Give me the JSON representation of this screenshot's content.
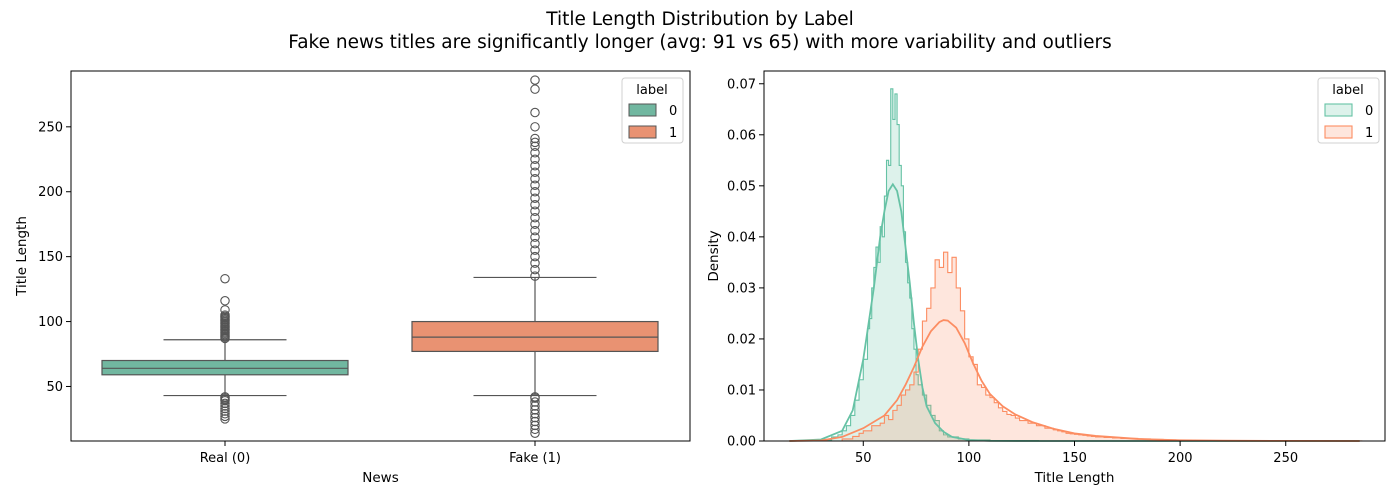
{
  "figure": {
    "title": "Title Length Distribution by Label",
    "subtitle": "Fake news titles are significantly longer (avg: 91 vs 65) with more variability and outliers"
  },
  "colors": {
    "label0": "#66c2a5",
    "label1": "#fc8d62",
    "label0_box": "#71b7a0",
    "label1_box": "#e99272",
    "box_line": "#555555"
  },
  "chart_data": [
    {
      "type": "box",
      "xlabel": "News",
      "ylabel": "Title Length",
      "categories": [
        "Real (0)",
        "Fake (1)"
      ],
      "ylim": [
        8,
        293
      ],
      "yticks": [
        50,
        100,
        150,
        200,
        250
      ],
      "grid": false,
      "legend": {
        "title": "label",
        "position": "top-right",
        "entries": [
          "0",
          "1"
        ]
      },
      "boxes": [
        {
          "category": "Real (0)",
          "label": "0",
          "whisker_low": 43,
          "q1": 59,
          "median": 64,
          "q3": 70,
          "whisker_high": 86,
          "outliers": [
            25,
            27,
            29,
            31,
            33,
            35,
            37,
            39,
            40,
            41,
            42,
            87,
            88,
            89,
            90,
            91,
            92,
            93,
            94,
            95,
            96,
            97,
            98,
            99,
            100,
            101,
            102,
            103,
            104,
            105,
            109,
            116,
            133
          ]
        },
        {
          "category": "Fake (1)",
          "label": "1",
          "whisker_low": 43,
          "q1": 77,
          "median": 88,
          "q3": 100,
          "whisker_high": 134,
          "outliers": [
            14,
            17,
            20,
            23,
            26,
            29,
            32,
            35,
            38,
            41,
            42,
            135,
            140,
            145,
            150,
            155,
            160,
            165,
            170,
            175,
            180,
            185,
            190,
            195,
            200,
            205,
            210,
            215,
            220,
            225,
            230,
            235,
            238,
            241,
            250,
            261,
            279,
            286
          ]
        }
      ]
    },
    {
      "type": "histogram",
      "xlabel": "Title Length",
      "ylabel": "Density",
      "xlim": [
        3,
        297
      ],
      "ylim": [
        0,
        0.0725
      ],
      "xticks": [
        50,
        100,
        150,
        200,
        250
      ],
      "yticks": [
        0.0,
        0.01,
        0.02,
        0.03,
        0.04,
        0.05,
        0.06,
        0.07
      ],
      "grid": false,
      "legend": {
        "title": "label",
        "position": "top-right",
        "entries": [
          "0",
          "1"
        ]
      },
      "series": [
        {
          "name": "0",
          "bins": [
            [
              20,
              0.0
            ],
            [
              30,
              0.0002
            ],
            [
              35,
              0.0008
            ],
            [
              38,
              0.0012
            ],
            [
              40,
              0.002
            ],
            [
              42,
              0.003
            ],
            [
              44,
              0.005
            ],
            [
              46,
              0.008
            ],
            [
              48,
              0.012
            ],
            [
              50,
              0.016
            ],
            [
              52,
              0.022
            ],
            [
              53,
              0.024
            ],
            [
              54,
              0.03
            ],
            [
              55,
              0.034
            ],
            [
              56,
              0.038
            ],
            [
              57,
              0.035
            ],
            [
              58,
              0.042
            ],
            [
              59,
              0.04
            ],
            [
              60,
              0.048
            ],
            [
              61,
              0.055
            ],
            [
              62,
              0.054
            ],
            [
              63,
              0.069
            ],
            [
              64,
              0.063
            ],
            [
              65,
              0.068
            ],
            [
              66,
              0.062
            ],
            [
              67,
              0.054
            ],
            [
              68,
              0.05
            ],
            [
              69,
              0.041
            ],
            [
              70,
              0.035
            ],
            [
              71,
              0.031
            ],
            [
              72,
              0.028
            ],
            [
              73,
              0.022
            ],
            [
              74,
              0.018
            ],
            [
              75,
              0.013
            ],
            [
              76,
              0.011
            ],
            [
              78,
              0.009
            ],
            [
              80,
              0.007
            ],
            [
              82,
              0.005
            ],
            [
              84,
              0.004
            ],
            [
              86,
              0.002
            ],
            [
              88,
              0.0012
            ],
            [
              90,
              0.0008
            ],
            [
              95,
              0.0004
            ],
            [
              100,
              0.0002
            ],
            [
              110,
              0.0001
            ],
            [
              133,
              0.0
            ]
          ],
          "kde": [
            [
              15,
              0.0
            ],
            [
              30,
              0.0003
            ],
            [
              40,
              0.002
            ],
            [
              45,
              0.006
            ],
            [
              50,
              0.016
            ],
            [
              55,
              0.03
            ],
            [
              58,
              0.04
            ],
            [
              60,
              0.045
            ],
            [
              62,
              0.049
            ],
            [
              64,
              0.0503
            ],
            [
              66,
              0.049
            ],
            [
              68,
              0.045
            ],
            [
              70,
              0.038
            ],
            [
              72,
              0.031
            ],
            [
              74,
              0.023
            ],
            [
              76,
              0.016
            ],
            [
              78,
              0.0105
            ],
            [
              80,
              0.0068
            ],
            [
              84,
              0.0035
            ],
            [
              88,
              0.0018
            ],
            [
              92,
              0.0008
            ],
            [
              100,
              0.0002
            ],
            [
              110,
              3e-05
            ],
            [
              130,
              0.0
            ],
            [
              200,
              0.0
            ],
            [
              285,
              0.0
            ]
          ]
        },
        {
          "name": "1",
          "bins": [
            [
              40,
              0.0004
            ],
            [
              45,
              0.0009
            ],
            [
              48,
              0.0015
            ],
            [
              50,
              0.002
            ],
            [
              52,
              0.002
            ],
            [
              54,
              0.003
            ],
            [
              56,
              0.003
            ],
            [
              58,
              0.0035
            ],
            [
              60,
              0.005
            ],
            [
              62,
              0.0042
            ],
            [
              64,
              0.006
            ],
            [
              66,
              0.007
            ],
            [
              68,
              0.009
            ],
            [
              70,
              0.01
            ],
            [
              72,
              0.011
            ],
            [
              74,
              0.0135
            ],
            [
              76,
              0.018
            ],
            [
              78,
              0.0235
            ],
            [
              80,
              0.026
            ],
            [
              82,
              0.03
            ],
            [
              84,
              0.0355
            ],
            [
              86,
              0.034
            ],
            [
              88,
              0.037
            ],
            [
              90,
              0.033
            ],
            [
              92,
              0.036
            ],
            [
              94,
              0.03
            ],
            [
              96,
              0.0255
            ],
            [
              98,
              0.02
            ],
            [
              100,
              0.0165
            ],
            [
              102,
              0.015
            ],
            [
              104,
              0.011
            ],
            [
              106,
              0.0105
            ],
            [
              108,
              0.009
            ],
            [
              110,
              0.0085
            ],
            [
              112,
              0.0075
            ],
            [
              114,
              0.0065
            ],
            [
              116,
              0.0058
            ],
            [
              118,
              0.0052
            ],
            [
              120,
              0.005
            ],
            [
              122,
              0.0045
            ],
            [
              124,
              0.004
            ],
            [
              126,
              0.004
            ],
            [
              128,
              0.0035
            ],
            [
              130,
              0.0035
            ],
            [
              132,
              0.003
            ],
            [
              134,
              0.003
            ],
            [
              136,
              0.0025
            ],
            [
              138,
              0.0025
            ],
            [
              140,
              0.0022
            ],
            [
              142,
              0.002
            ],
            [
              144,
              0.0018
            ],
            [
              146,
              0.0015
            ],
            [
              148,
              0.0014
            ],
            [
              150,
              0.0013
            ],
            [
              152,
              0.0012
            ],
            [
              154,
              0.0011
            ],
            [
              156,
              0.001
            ],
            [
              158,
              0.0009
            ],
            [
              160,
              0.0008
            ],
            [
              164,
              0.0007
            ],
            [
              168,
              0.0006
            ],
            [
              172,
              0.0005
            ],
            [
              176,
              0.0005
            ],
            [
              180,
              0.0004
            ],
            [
              186,
              0.0003
            ],
            [
              192,
              0.0002
            ],
            [
              198,
              0.00015
            ],
            [
              206,
              0.0001
            ],
            [
              220,
              6e-05
            ],
            [
              240,
              4e-05
            ],
            [
              260,
              2e-05
            ],
            [
              286,
              0.0
            ]
          ],
          "kde": [
            [
              15,
              0.0
            ],
            [
              30,
              0.0001
            ],
            [
              40,
              0.0008
            ],
            [
              50,
              0.0025
            ],
            [
              60,
              0.005
            ],
            [
              66,
              0.008
            ],
            [
              70,
              0.011
            ],
            [
              74,
              0.0145
            ],
            [
              78,
              0.0185
            ],
            [
              82,
              0.0215
            ],
            [
              86,
              0.0233
            ],
            [
              88,
              0.0237
            ],
            [
              90,
              0.0236
            ],
            [
              94,
              0.0222
            ],
            [
              98,
              0.0192
            ],
            [
              102,
              0.0152
            ],
            [
              106,
              0.0118
            ],
            [
              110,
              0.0092
            ],
            [
              116,
              0.0068
            ],
            [
              122,
              0.0052
            ],
            [
              130,
              0.0037
            ],
            [
              140,
              0.0024
            ],
            [
              150,
              0.0015
            ],
            [
              160,
              0.001
            ],
            [
              170,
              0.0007
            ],
            [
              180,
              0.0004
            ],
            [
              200,
              0.00015
            ],
            [
              220,
              6e-05
            ],
            [
              250,
              2e-05
            ],
            [
              285,
              0.0
            ]
          ]
        }
      ]
    }
  ]
}
